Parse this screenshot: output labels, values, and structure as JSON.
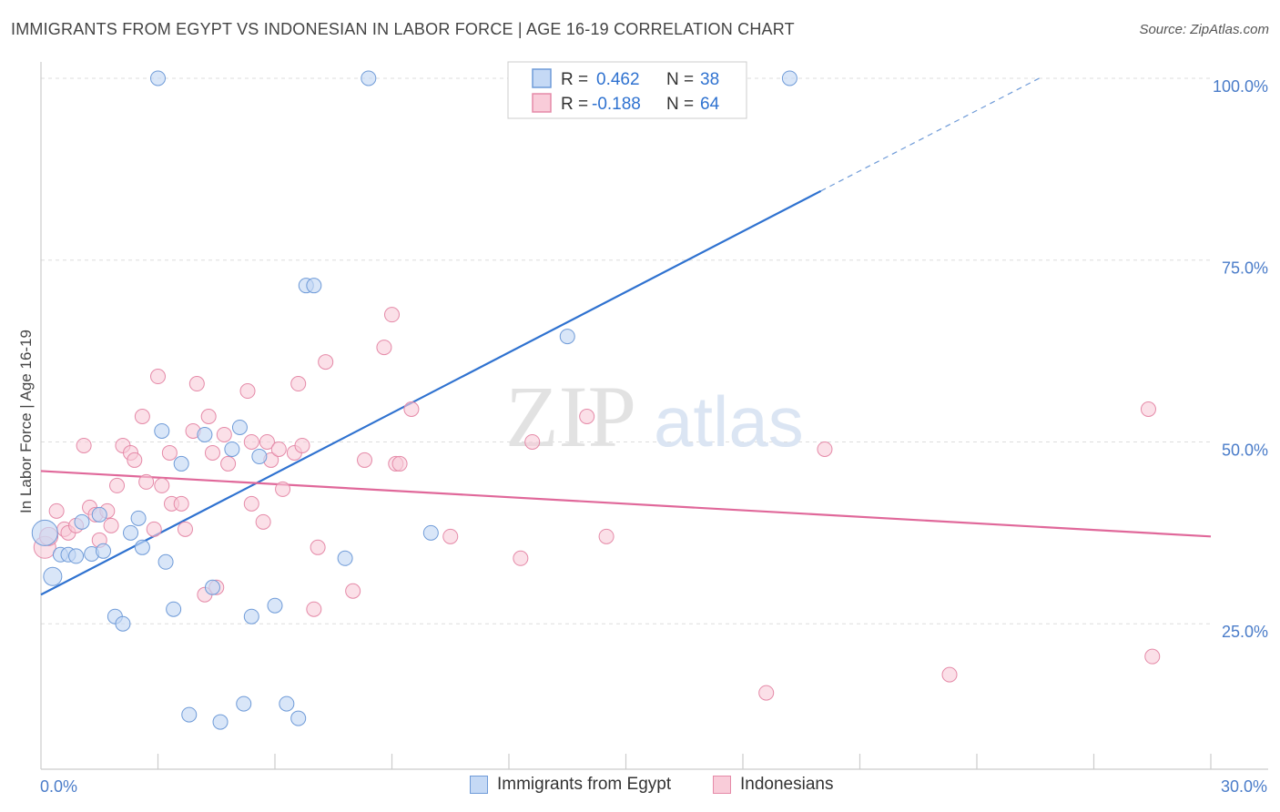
{
  "title": "IMMIGRANTS FROM EGYPT VS INDONESIAN IN LABOR FORCE | AGE 16-19 CORRELATION CHART",
  "source": "Source: ZipAtlas.com",
  "watermark": {
    "zip": "ZIP",
    "atlas": "atlas"
  },
  "colors": {
    "blue_fill": "#c5d9f5",
    "blue_stroke": "#6f9bd8",
    "blue_line": "#2f72d0",
    "pink_fill": "#f9ccd9",
    "pink_stroke": "#e58aa8",
    "pink_line": "#e0689a",
    "tick_label": "#4a7cc9",
    "grid": "#dddddd"
  },
  "legend_top": {
    "rows": [
      {
        "series": "blue",
        "r_label": "R =",
        "r_value": "0.462",
        "n_label": "N =",
        "n_value": "38"
      },
      {
        "series": "pink",
        "r_label": "R =",
        "r_value": "-0.188",
        "n_label": "N =",
        "n_value": "64"
      }
    ]
  },
  "legend_bottom": {
    "items": [
      {
        "series": "blue",
        "label": "Immigrants from Egypt"
      },
      {
        "series": "pink",
        "label": "Indonesians"
      }
    ]
  },
  "chart_data": {
    "type": "scatter",
    "title": "IMMIGRANTS FROM EGYPT VS INDONESIAN IN LABOR FORCE | AGE 16-19 CORRELATION CHART",
    "xlabel": "",
    "ylabel": "In Labor Force | Age 16-19",
    "xlim": [
      0,
      30
    ],
    "ylim": [
      5,
      103
    ],
    "x_tick_labels": [
      {
        "value": 0,
        "label": "0.0%"
      },
      {
        "value": 30,
        "label": "30.0%"
      }
    ],
    "y_tick_labels": [
      {
        "value": 25,
        "label": "25.0%"
      },
      {
        "value": 50,
        "label": "50.0%"
      },
      {
        "value": 75,
        "label": "75.0%"
      },
      {
        "value": 100,
        "label": "100.0%"
      }
    ],
    "grid": true,
    "legend_position": "top-center",
    "series": [
      {
        "name": "Immigrants from Egypt",
        "color": "#6f9bd8",
        "points": [
          [
            0.1,
            37.5,
            14
          ],
          [
            0.3,
            31.5,
            10
          ],
          [
            0.5,
            34.5,
            8
          ],
          [
            0.7,
            34.5,
            8
          ],
          [
            0.9,
            34.3,
            8
          ],
          [
            1.05,
            39.0,
            8
          ],
          [
            1.3,
            34.6,
            8
          ],
          [
            1.5,
            40.0,
            8
          ],
          [
            1.6,
            35.0,
            8
          ],
          [
            1.9,
            26.0,
            8
          ],
          [
            2.1,
            25.0,
            8
          ],
          [
            2.3,
            37.5,
            8
          ],
          [
            2.5,
            39.5,
            8
          ],
          [
            2.6,
            35.5,
            8
          ],
          [
            3.0,
            100.0,
            8
          ],
          [
            3.1,
            51.5,
            8
          ],
          [
            3.2,
            33.5,
            8
          ],
          [
            3.4,
            27.0,
            8
          ],
          [
            3.6,
            47.0,
            8
          ],
          [
            3.8,
            12.5,
            8
          ],
          [
            4.2,
            51.0,
            8
          ],
          [
            4.4,
            30.0,
            8
          ],
          [
            4.6,
            11.5,
            8
          ],
          [
            4.9,
            49.0,
            8
          ],
          [
            5.1,
            52.0,
            8
          ],
          [
            5.2,
            14.0,
            8
          ],
          [
            5.4,
            26.0,
            8
          ],
          [
            5.6,
            48.0,
            8
          ],
          [
            6.0,
            27.5,
            8
          ],
          [
            6.3,
            14.0,
            8
          ],
          [
            6.6,
            12.0,
            8
          ],
          [
            6.8,
            71.5,
            8
          ],
          [
            7.0,
            71.5,
            8
          ],
          [
            7.8,
            34.0,
            8
          ],
          [
            8.4,
            100.0,
            8
          ],
          [
            10.0,
            37.5,
            8
          ],
          [
            13.5,
            64.5,
            8
          ],
          [
            19.2,
            100.0,
            8
          ]
        ],
        "trend": {
          "x0": 0,
          "y0": 29.0,
          "x1": 20.0,
          "y1": 84.5,
          "dash_x1": 25.6,
          "dash_y1": 100.0
        }
      },
      {
        "name": "Indonesians",
        "color": "#e58aa8",
        "points": [
          [
            0.1,
            35.5,
            12
          ],
          [
            0.2,
            37.0,
            10
          ],
          [
            0.4,
            40.5,
            8
          ],
          [
            0.6,
            38.0,
            8
          ],
          [
            0.7,
            37.5,
            8
          ],
          [
            0.9,
            38.5,
            8
          ],
          [
            1.1,
            49.5,
            8
          ],
          [
            1.25,
            41.0,
            8
          ],
          [
            1.4,
            40.0,
            8
          ],
          [
            1.5,
            36.5,
            8
          ],
          [
            1.7,
            40.5,
            8
          ],
          [
            1.8,
            38.5,
            8
          ],
          [
            1.95,
            44.0,
            8
          ],
          [
            2.1,
            49.5,
            8
          ],
          [
            2.3,
            48.5,
            8
          ],
          [
            2.4,
            47.5,
            8
          ],
          [
            2.6,
            53.5,
            8
          ],
          [
            2.7,
            44.5,
            8
          ],
          [
            2.9,
            38.0,
            8
          ],
          [
            3.0,
            59.0,
            8
          ],
          [
            3.1,
            44.0,
            8
          ],
          [
            3.3,
            48.5,
            8
          ],
          [
            3.35,
            41.5,
            8
          ],
          [
            3.6,
            41.5,
            8
          ],
          [
            3.7,
            38.0,
            8
          ],
          [
            3.9,
            51.5,
            8
          ],
          [
            4.0,
            58.0,
            8
          ],
          [
            4.2,
            29.0,
            8
          ],
          [
            4.3,
            53.5,
            8
          ],
          [
            4.4,
            48.5,
            8
          ],
          [
            4.5,
            30.0,
            8
          ],
          [
            4.7,
            51.0,
            8
          ],
          [
            4.8,
            47.0,
            8
          ],
          [
            5.3,
            57.0,
            8
          ],
          [
            5.4,
            50.0,
            8
          ],
          [
            5.4,
            41.5,
            8
          ],
          [
            5.7,
            39.0,
            8
          ],
          [
            5.8,
            50.0,
            8
          ],
          [
            5.9,
            47.5,
            8
          ],
          [
            6.1,
            49.0,
            8
          ],
          [
            6.2,
            43.5,
            8
          ],
          [
            6.5,
            48.5,
            8
          ],
          [
            6.6,
            58.0,
            8
          ],
          [
            6.7,
            49.5,
            8
          ],
          [
            7.0,
            27.0,
            8
          ],
          [
            7.1,
            35.5,
            8
          ],
          [
            7.3,
            61.0,
            8
          ],
          [
            8.0,
            29.5,
            8
          ],
          [
            8.3,
            47.5,
            8
          ],
          [
            8.8,
            63.0,
            8
          ],
          [
            9.0,
            67.5,
            8
          ],
          [
            9.1,
            47.0,
            8
          ],
          [
            9.2,
            47.0,
            8
          ],
          [
            9.5,
            54.5,
            8
          ],
          [
            10.5,
            37.0,
            8
          ],
          [
            12.3,
            34.0,
            8
          ],
          [
            12.6,
            50.0,
            8
          ],
          [
            14.0,
            53.5,
            8
          ],
          [
            14.5,
            37.0,
            8
          ],
          [
            18.6,
            15.5,
            8
          ],
          [
            20.1,
            49.0,
            8
          ],
          [
            23.3,
            18.0,
            8
          ],
          [
            28.4,
            54.5,
            8
          ],
          [
            28.5,
            20.5,
            8
          ]
        ],
        "trend": {
          "x0": 0,
          "y0": 46.0,
          "x1": 30.0,
          "y1": 37.0
        }
      }
    ]
  }
}
